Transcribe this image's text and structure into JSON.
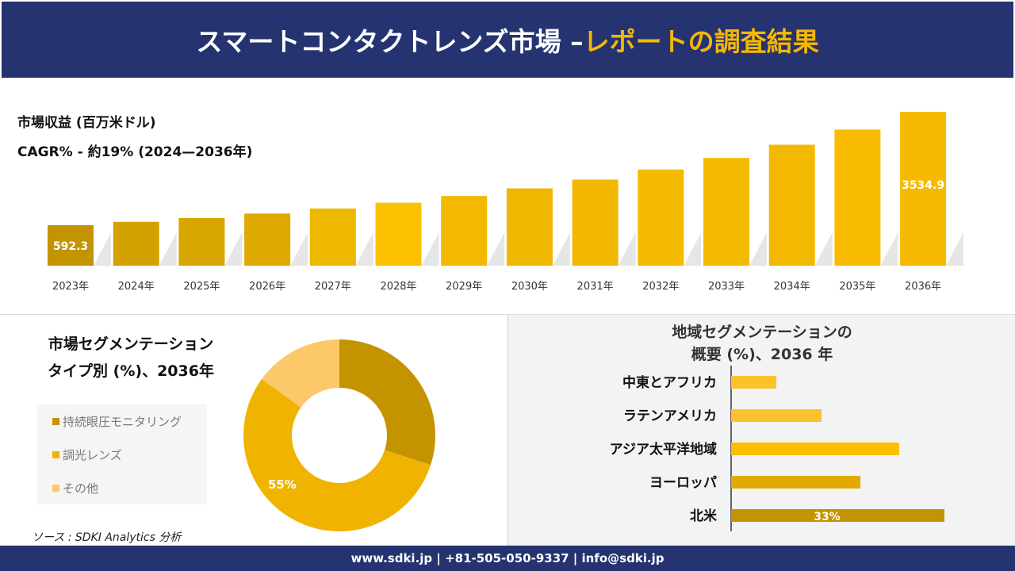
{
  "header": {
    "title_main": "スマートコンタクトレンズ市場 –",
    "title_accent": "レポートの調査結果"
  },
  "top": {
    "revenue_label": "市場収益 (百万米ドル)",
    "cagr_label": "CAGR% - 約19% (2024—2036年)"
  },
  "chart_data": [
    {
      "type": "bar",
      "categories": [
        "2023年",
        "2024年",
        "2025年",
        "2026年",
        "2027年",
        "2028年",
        "2029年",
        "2030年",
        "2031年",
        "2032年",
        "2033年",
        "2034年",
        "2035年",
        "2036年"
      ],
      "values": [
        592.3,
        679.5,
        779.5,
        894.1,
        1025.6,
        1176.5,
        1349.6,
        1548.2,
        1776.0,
        2037.3,
        2337.0,
        2680.9,
        3075.3,
        3534.9
      ],
      "data_labels": {
        "0": "592.3",
        "13": "3534.9"
      },
      "colors": [
        "#c49400",
        "#d4a200",
        "#d9a600",
        "#dea900",
        "#eeb700",
        "#fbc000",
        "#f3b900",
        "#f0b700",
        "#f2b800",
        "#f5bb00",
        "#f4ba00",
        "#f3b900",
        "#f7bc00",
        "#f5ba00"
      ],
      "ylabel": "市場収益 (百万米ドル)"
    },
    {
      "type": "pie",
      "title": "市場セグメンテーション タイプ別 (%)、2036年",
      "labels": [
        "持続眼圧モニタリング",
        "調光レンズ",
        "その他"
      ],
      "values": [
        30,
        55,
        15
      ],
      "data_labels": {
        "1": "55%"
      },
      "colors": [
        "#c49400",
        "#f0b400",
        "#fcc86a"
      ]
    },
    {
      "type": "bar",
      "orientation": "horizontal",
      "title": "地域セグメンテーションの 概要 (%)、2036 年",
      "categories": [
        "中東とアフリカ",
        "ラテンアメリカ",
        "アジア太平洋地域",
        "ヨーロッパ",
        "北米"
      ],
      "values": [
        7,
        14,
        26,
        20,
        33
      ],
      "data_labels": {
        "4": "33%"
      },
      "colors": [
        "#fcc22a",
        "#fcc22a",
        "#fbbf00",
        "#e2aa00",
        "#c49400"
      ]
    }
  ],
  "segment": {
    "title_line1": "市場セグメンテーション",
    "title_line2": "タイプ別 (%)、2036年",
    "source": "ソース : SDKI Analytics 分析"
  },
  "region": {
    "title_line1": "地域セグメンテーションの",
    "title_line2": "概要 (%)、2036 年"
  },
  "footer": {
    "contact": "www.sdki.jp | +81-505-050-9337 | info@sdki.jp"
  }
}
